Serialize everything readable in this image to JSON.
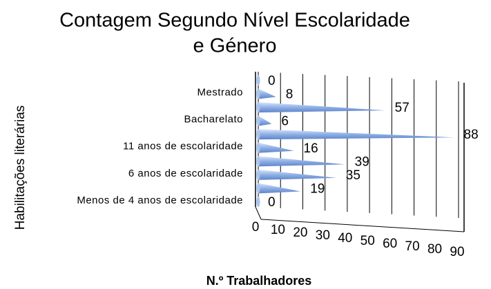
{
  "chart_data": {
    "type": "cone-bar",
    "title": [
      "Contagem Segundo Nível Escolaridade",
      "e Género"
    ],
    "xlabel": "N.º Trabalhadores",
    "ylabel": "Habilitações literárias",
    "categories": [
      "Menos de 4 anos de escolaridade",
      null,
      "6 anos de escolaridade",
      null,
      "11 anos de escolaridade",
      null,
      "Bacharelato",
      null,
      "Mestrado",
      null
    ],
    "values": [
      0,
      19,
      35,
      39,
      16,
      88,
      6,
      57,
      8,
      0
    ],
    "color": "#8fb0e6",
    "xlim": [
      0,
      90
    ],
    "xticks": [
      0,
      10,
      20,
      30,
      40,
      50,
      60,
      70,
      80,
      90
    ],
    "grid": true
  }
}
